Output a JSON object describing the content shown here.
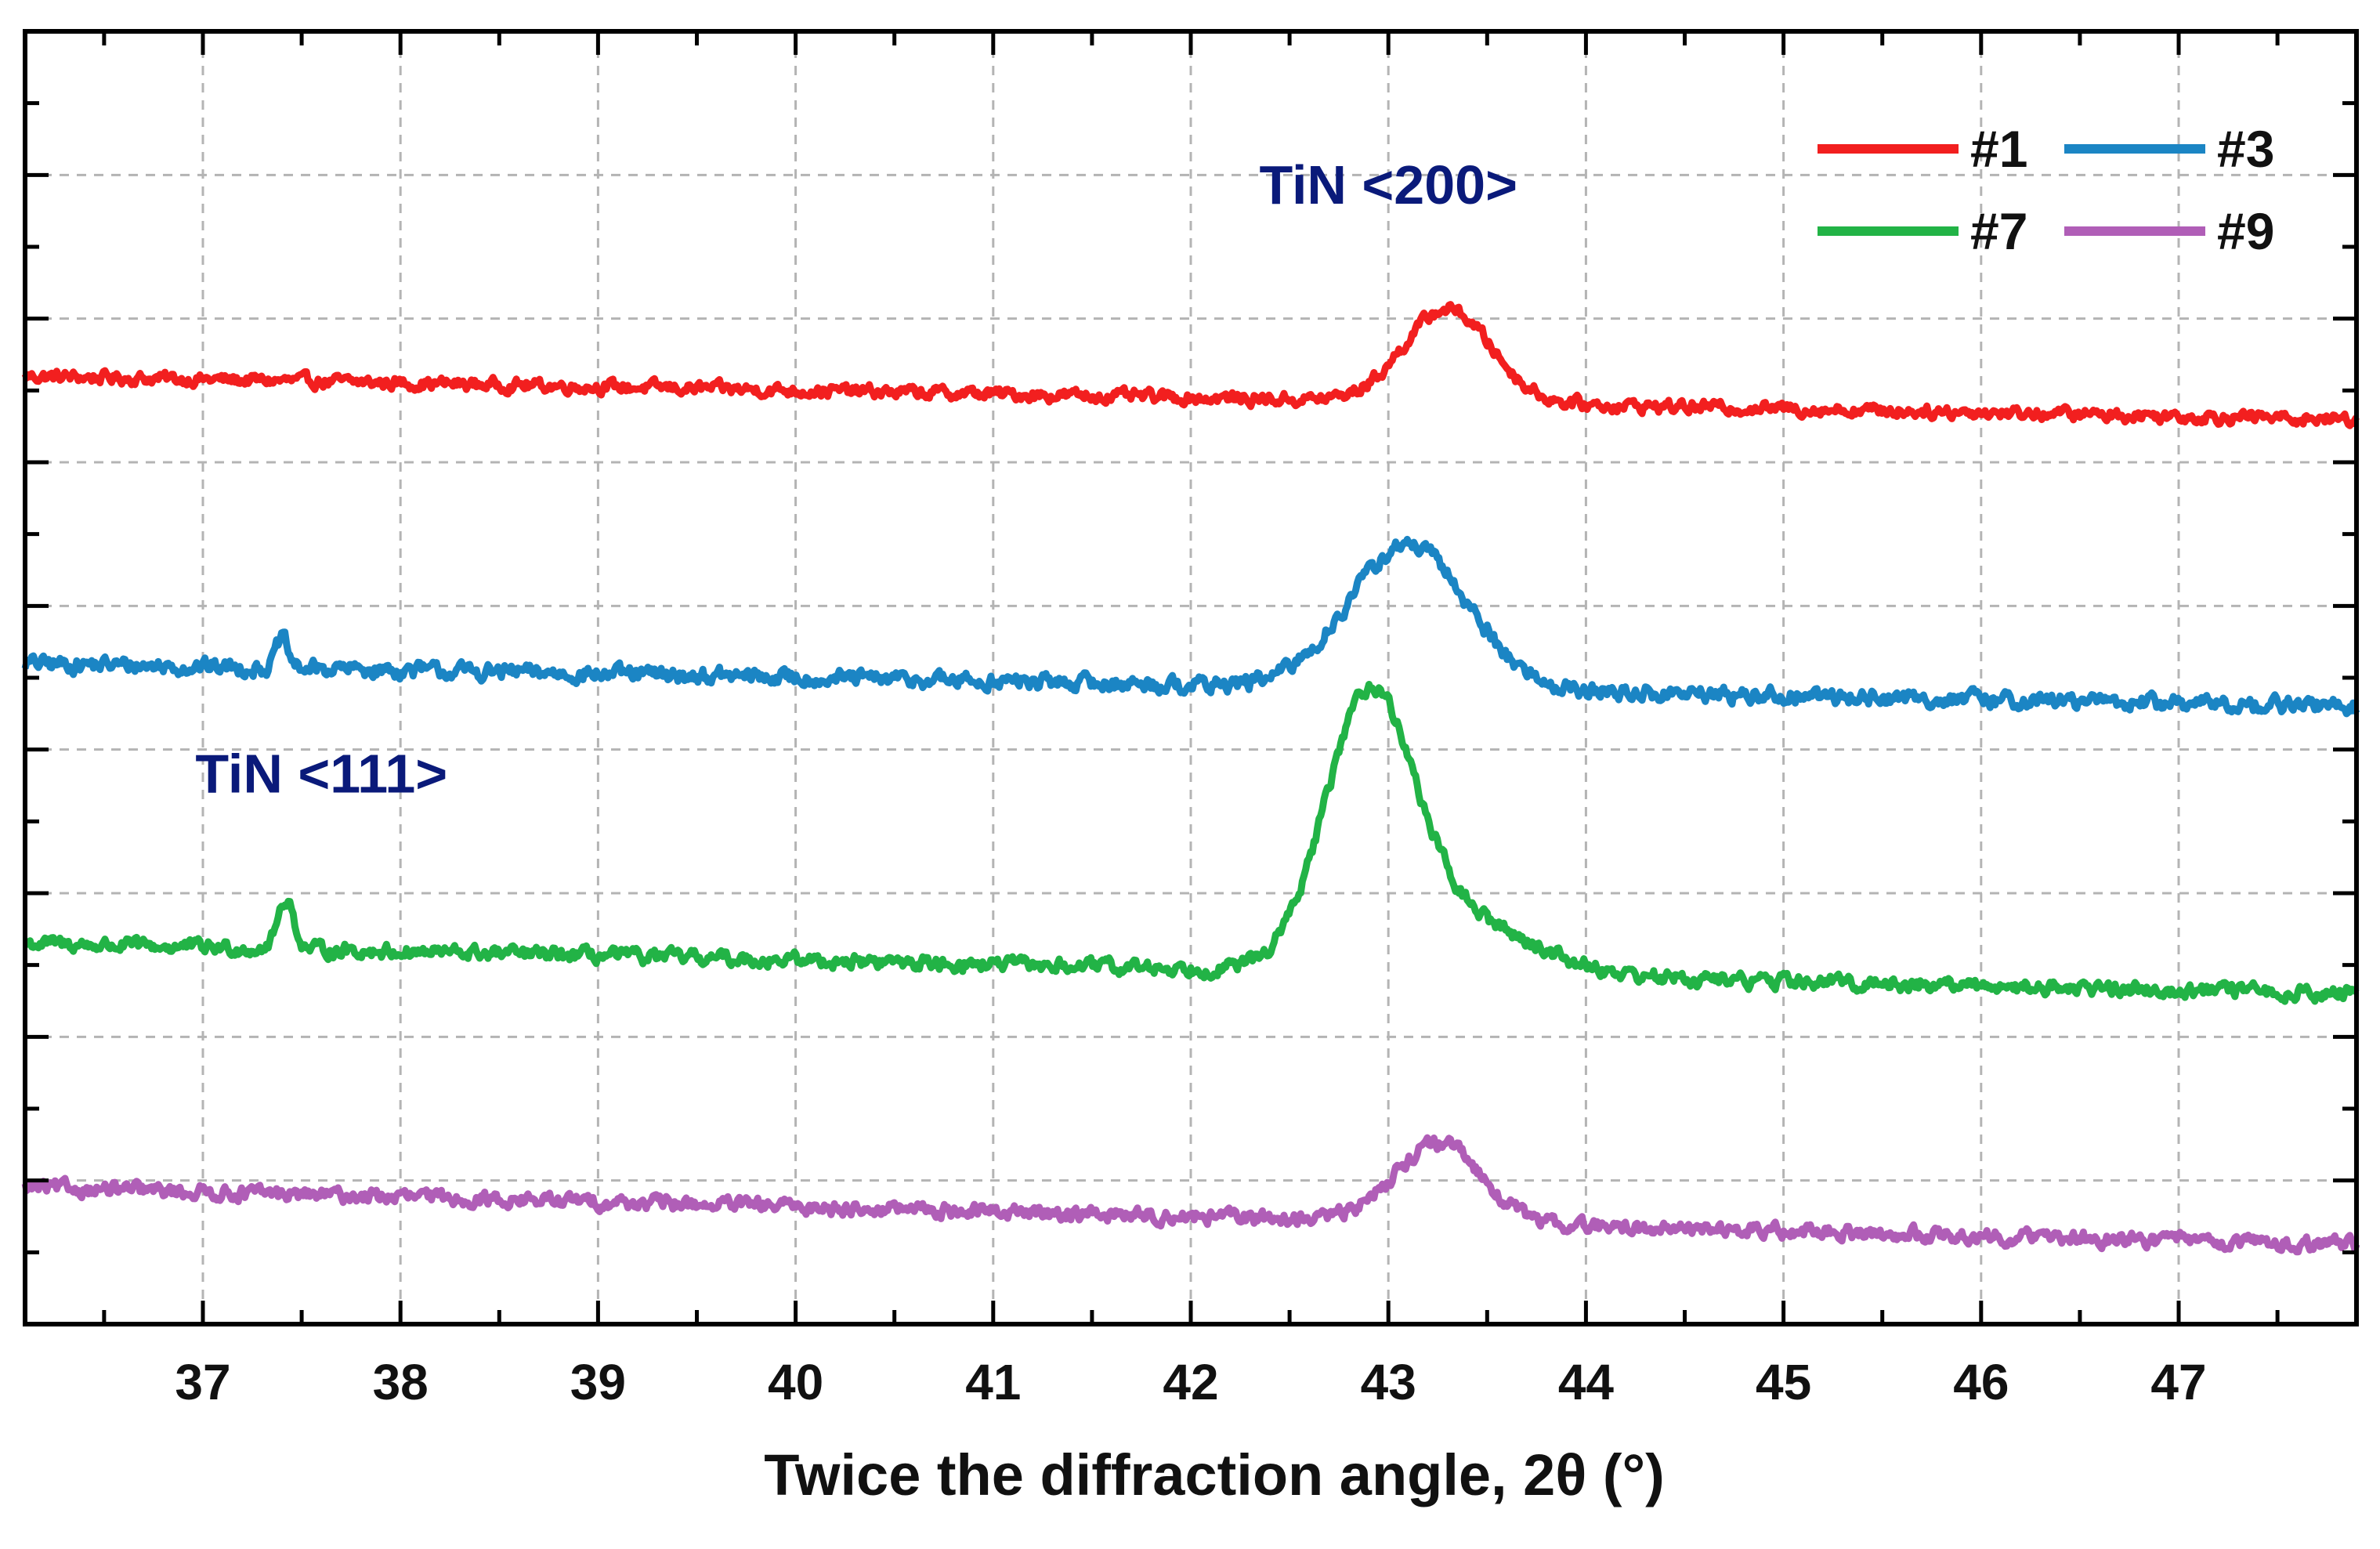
{
  "chart_data": {
    "type": "line",
    "title": "",
    "xlabel": "Twice the diffraction angle, 2θ (°)",
    "ylabel": "",
    "xlim": [
      36.1,
      47.9
    ],
    "ylim": [
      0,
      9
    ],
    "x_ticks": [
      37,
      38,
      39,
      40,
      41,
      42,
      43,
      44,
      45,
      46,
      47
    ],
    "y_ticks_labeled": false,
    "grid": true,
    "legend_position": "top-right",
    "series": [
      {
        "name": "#1",
        "color": "#f21f1f",
        "baseline_start": 6.6,
        "baseline_end": 6.3,
        "noise": 0.07,
        "peaks": [
          {
            "center": 43.3,
            "height": 0.65,
            "width": 0.22
          }
        ]
      },
      {
        "name": "#3",
        "color": "#1b85c4",
        "baseline_start": 4.6,
        "baseline_end": 4.3,
        "noise": 0.09,
        "peaks": [
          {
            "center": 37.4,
            "height": 0.2,
            "width": 0.03
          },
          {
            "center": 43.1,
            "height": 1.0,
            "width": 0.3
          }
        ]
      },
      {
        "name": "#7",
        "color": "#22b346",
        "baseline_start": 2.65,
        "baseline_end": 2.3,
        "noise": 0.08,
        "peaks": [
          {
            "center": 37.42,
            "height": 0.35,
            "width": 0.04
          },
          {
            "center": 42.9,
            "height": 1.75,
            "width": 0.22
          },
          {
            "center": 43.3,
            "height": 0.4,
            "width": 0.4
          }
        ]
      },
      {
        "name": "#9",
        "color": "#b05eb7",
        "baseline_start": 0.95,
        "baseline_end": 0.55,
        "noise": 0.08,
        "peaks": [
          {
            "center": 43.25,
            "height": 0.55,
            "width": 0.22
          }
        ]
      }
    ],
    "annotations": [
      {
        "text": "TiN <200>",
        "x": 43.0,
        "y": 7.8
      },
      {
        "text": "TiN <111>",
        "x": 37.6,
        "y": 3.7
      }
    ]
  }
}
